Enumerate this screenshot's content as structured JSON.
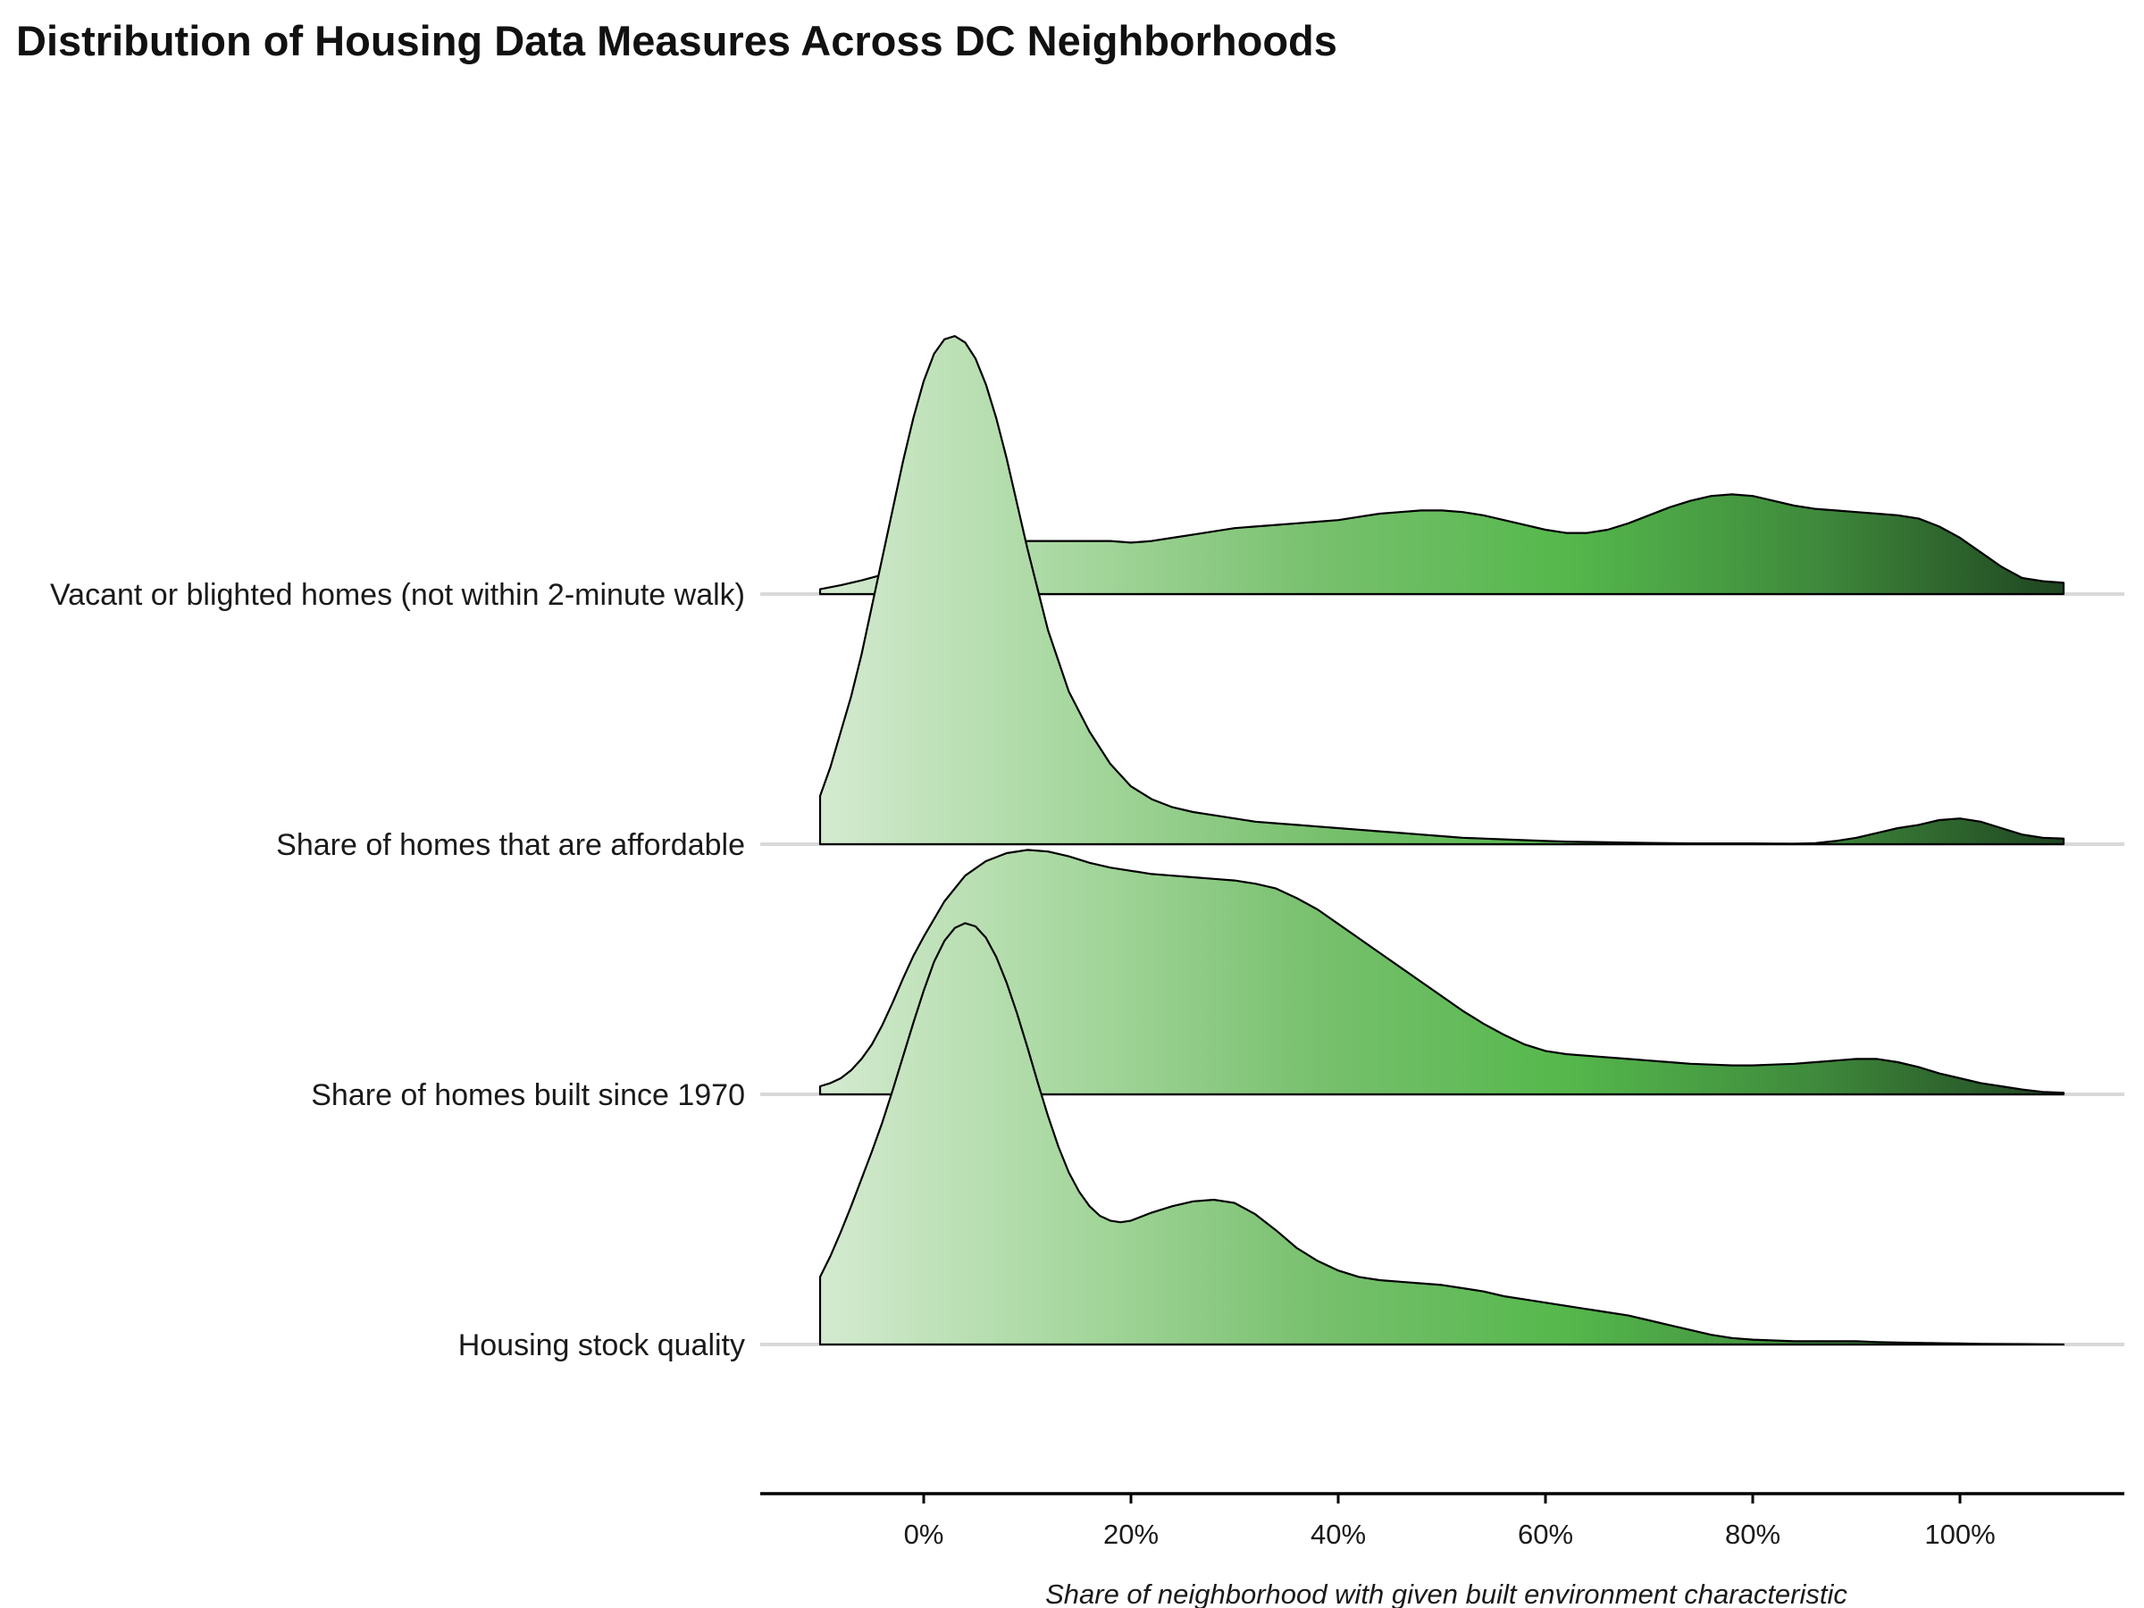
{
  "chart_data": {
    "type": "ridgeline",
    "title": "Distribution of Housing Data Measures Across DC Neighborhoods",
    "xlabel": "Share of neighborhood with given built environment characteristic",
    "ylabel": "",
    "xlim": [
      -0.1,
      1.1
    ],
    "x_ticks": [
      0,
      0.2,
      0.4,
      0.6,
      0.8,
      1.0
    ],
    "x_tick_labels": [
      "0%",
      "20%",
      "40%",
      "60%",
      "80%",
      "100%"
    ],
    "categories": [
      "Vacant or blighted homes (not within 2-minute walk)",
      "Share of homes that are affordable",
      "Share of homes built since 1970",
      "Housing stock quality"
    ],
    "fill_gradient": [
      "#d4ead0",
      "#a8d8a0",
      "#78c06e",
      "#55b84c",
      "#3f8a3c",
      "#1f4521"
    ],
    "grid": false,
    "series": [
      {
        "name": "Vacant or blighted homes (not within 2-minute walk)",
        "x": [
          -0.1,
          -0.08,
          -0.06,
          -0.04,
          -0.02,
          0.0,
          0.02,
          0.04,
          0.06,
          0.08,
          0.1,
          0.12,
          0.14,
          0.16,
          0.18,
          0.2,
          0.22,
          0.24,
          0.26,
          0.28,
          0.3,
          0.32,
          0.34,
          0.36,
          0.38,
          0.4,
          0.42,
          0.44,
          0.46,
          0.48,
          0.5,
          0.52,
          0.54,
          0.56,
          0.58,
          0.6,
          0.62,
          0.64,
          0.66,
          0.68,
          0.7,
          0.72,
          0.74,
          0.76,
          0.78,
          0.8,
          0.82,
          0.84,
          0.86,
          0.88,
          0.9,
          0.92,
          0.94,
          0.96,
          0.98,
          1.0,
          1.02,
          1.04,
          1.06,
          1.08,
          1.1
        ],
        "density": [
          0.03,
          0.055,
          0.085,
          0.12,
          0.16,
          0.2,
          0.24,
          0.28,
          0.31,
          0.32,
          0.33,
          0.33,
          0.33,
          0.33,
          0.33,
          0.32,
          0.33,
          0.35,
          0.37,
          0.39,
          0.41,
          0.42,
          0.43,
          0.44,
          0.45,
          0.46,
          0.48,
          0.5,
          0.51,
          0.52,
          0.52,
          0.51,
          0.49,
          0.46,
          0.43,
          0.4,
          0.38,
          0.38,
          0.4,
          0.44,
          0.49,
          0.54,
          0.58,
          0.61,
          0.62,
          0.61,
          0.58,
          0.55,
          0.53,
          0.52,
          0.51,
          0.5,
          0.49,
          0.47,
          0.42,
          0.35,
          0.26,
          0.17,
          0.1,
          0.08,
          0.07
        ]
      },
      {
        "name": "Share of homes that are affordable",
        "x": [
          -0.1,
          -0.09,
          -0.08,
          -0.07,
          -0.06,
          -0.05,
          -0.04,
          -0.03,
          -0.02,
          -0.01,
          0.0,
          0.01,
          0.02,
          0.03,
          0.04,
          0.05,
          0.06,
          0.07,
          0.08,
          0.09,
          0.1,
          0.12,
          0.14,
          0.16,
          0.18,
          0.2,
          0.22,
          0.24,
          0.26,
          0.28,
          0.3,
          0.32,
          0.34,
          0.36,
          0.38,
          0.4,
          0.42,
          0.44,
          0.46,
          0.48,
          0.5,
          0.52,
          0.54,
          0.56,
          0.58,
          0.6,
          0.62,
          0.64,
          0.66,
          0.68,
          0.7,
          0.72,
          0.74,
          0.76,
          0.78,
          0.8,
          0.82,
          0.84,
          0.86,
          0.88,
          0.9,
          0.92,
          0.94,
          0.96,
          0.98,
          1.0,
          1.02,
          1.04,
          1.06,
          1.08,
          1.1
        ],
        "density": [
          0.3,
          0.48,
          0.7,
          0.92,
          1.18,
          1.48,
          1.78,
          2.08,
          2.38,
          2.65,
          2.88,
          3.05,
          3.14,
          3.16,
          3.12,
          3.02,
          2.86,
          2.65,
          2.4,
          2.12,
          1.84,
          1.33,
          0.95,
          0.7,
          0.5,
          0.36,
          0.28,
          0.23,
          0.2,
          0.18,
          0.16,
          0.14,
          0.13,
          0.12,
          0.11,
          0.1,
          0.09,
          0.08,
          0.07,
          0.06,
          0.05,
          0.04,
          0.035,
          0.03,
          0.025,
          0.02,
          0.016,
          0.014,
          0.012,
          0.01,
          0.008,
          0.006,
          0.005,
          0.005,
          0.005,
          0.005,
          0.004,
          0.003,
          0.006,
          0.02,
          0.04,
          0.07,
          0.1,
          0.12,
          0.15,
          0.16,
          0.14,
          0.1,
          0.06,
          0.04,
          0.035
        ]
      },
      {
        "name": "Share of homes built since 1970",
        "x": [
          -0.1,
          -0.09,
          -0.08,
          -0.07,
          -0.06,
          -0.05,
          -0.04,
          -0.03,
          -0.02,
          -0.01,
          0.0,
          0.02,
          0.04,
          0.06,
          0.08,
          0.1,
          0.12,
          0.14,
          0.16,
          0.18,
          0.2,
          0.22,
          0.24,
          0.26,
          0.28,
          0.3,
          0.32,
          0.34,
          0.36,
          0.38,
          0.4,
          0.42,
          0.44,
          0.46,
          0.48,
          0.5,
          0.52,
          0.54,
          0.56,
          0.58,
          0.6,
          0.62,
          0.64,
          0.66,
          0.68,
          0.7,
          0.72,
          0.74,
          0.76,
          0.78,
          0.8,
          0.82,
          0.84,
          0.86,
          0.88,
          0.9,
          0.92,
          0.94,
          0.96,
          0.98,
          1.0,
          1.02,
          1.04,
          1.06,
          1.08,
          1.1
        ],
        "density": [
          0.05,
          0.07,
          0.1,
          0.15,
          0.22,
          0.31,
          0.43,
          0.57,
          0.72,
          0.86,
          0.98,
          1.2,
          1.36,
          1.45,
          1.5,
          1.52,
          1.51,
          1.48,
          1.44,
          1.41,
          1.39,
          1.37,
          1.36,
          1.35,
          1.34,
          1.33,
          1.31,
          1.28,
          1.22,
          1.15,
          1.06,
          0.97,
          0.88,
          0.79,
          0.7,
          0.61,
          0.52,
          0.44,
          0.37,
          0.31,
          0.27,
          0.25,
          0.24,
          0.23,
          0.22,
          0.21,
          0.2,
          0.19,
          0.185,
          0.18,
          0.18,
          0.185,
          0.19,
          0.2,
          0.21,
          0.22,
          0.22,
          0.2,
          0.17,
          0.13,
          0.1,
          0.07,
          0.05,
          0.03,
          0.015,
          0.01
        ]
      },
      {
        "name": "Housing stock quality",
        "x": [
          -0.1,
          -0.09,
          -0.08,
          -0.07,
          -0.06,
          -0.05,
          -0.04,
          -0.03,
          -0.02,
          -0.01,
          0.0,
          0.01,
          0.02,
          0.03,
          0.04,
          0.05,
          0.06,
          0.07,
          0.08,
          0.09,
          0.1,
          0.11,
          0.12,
          0.13,
          0.14,
          0.15,
          0.16,
          0.17,
          0.18,
          0.19,
          0.2,
          0.22,
          0.24,
          0.26,
          0.28,
          0.3,
          0.32,
          0.34,
          0.36,
          0.38,
          0.4,
          0.42,
          0.44,
          0.46,
          0.48,
          0.5,
          0.52,
          0.54,
          0.56,
          0.58,
          0.6,
          0.62,
          0.64,
          0.66,
          0.68,
          0.7,
          0.72,
          0.74,
          0.76,
          0.78,
          0.8,
          0.82,
          0.84,
          0.86,
          0.88,
          0.9,
          0.92,
          0.94,
          0.96,
          0.98,
          1.0,
          1.02,
          1.04,
          1.06,
          1.08,
          1.1
        ],
        "density": [
          0.42,
          0.55,
          0.7,
          0.86,
          1.03,
          1.2,
          1.38,
          1.58,
          1.79,
          2.0,
          2.2,
          2.38,
          2.51,
          2.59,
          2.62,
          2.6,
          2.53,
          2.41,
          2.25,
          2.06,
          1.85,
          1.63,
          1.42,
          1.23,
          1.07,
          0.95,
          0.86,
          0.8,
          0.77,
          0.76,
          0.77,
          0.82,
          0.86,
          0.89,
          0.9,
          0.88,
          0.81,
          0.71,
          0.6,
          0.52,
          0.46,
          0.42,
          0.4,
          0.39,
          0.38,
          0.37,
          0.35,
          0.33,
          0.3,
          0.28,
          0.26,
          0.24,
          0.22,
          0.2,
          0.18,
          0.15,
          0.12,
          0.09,
          0.06,
          0.04,
          0.03,
          0.025,
          0.02,
          0.02,
          0.02,
          0.02,
          0.015,
          0.012,
          0.01,
          0.008,
          0.006,
          0.004,
          0.003,
          0.002,
          0.001,
          0.0
        ]
      }
    ]
  }
}
